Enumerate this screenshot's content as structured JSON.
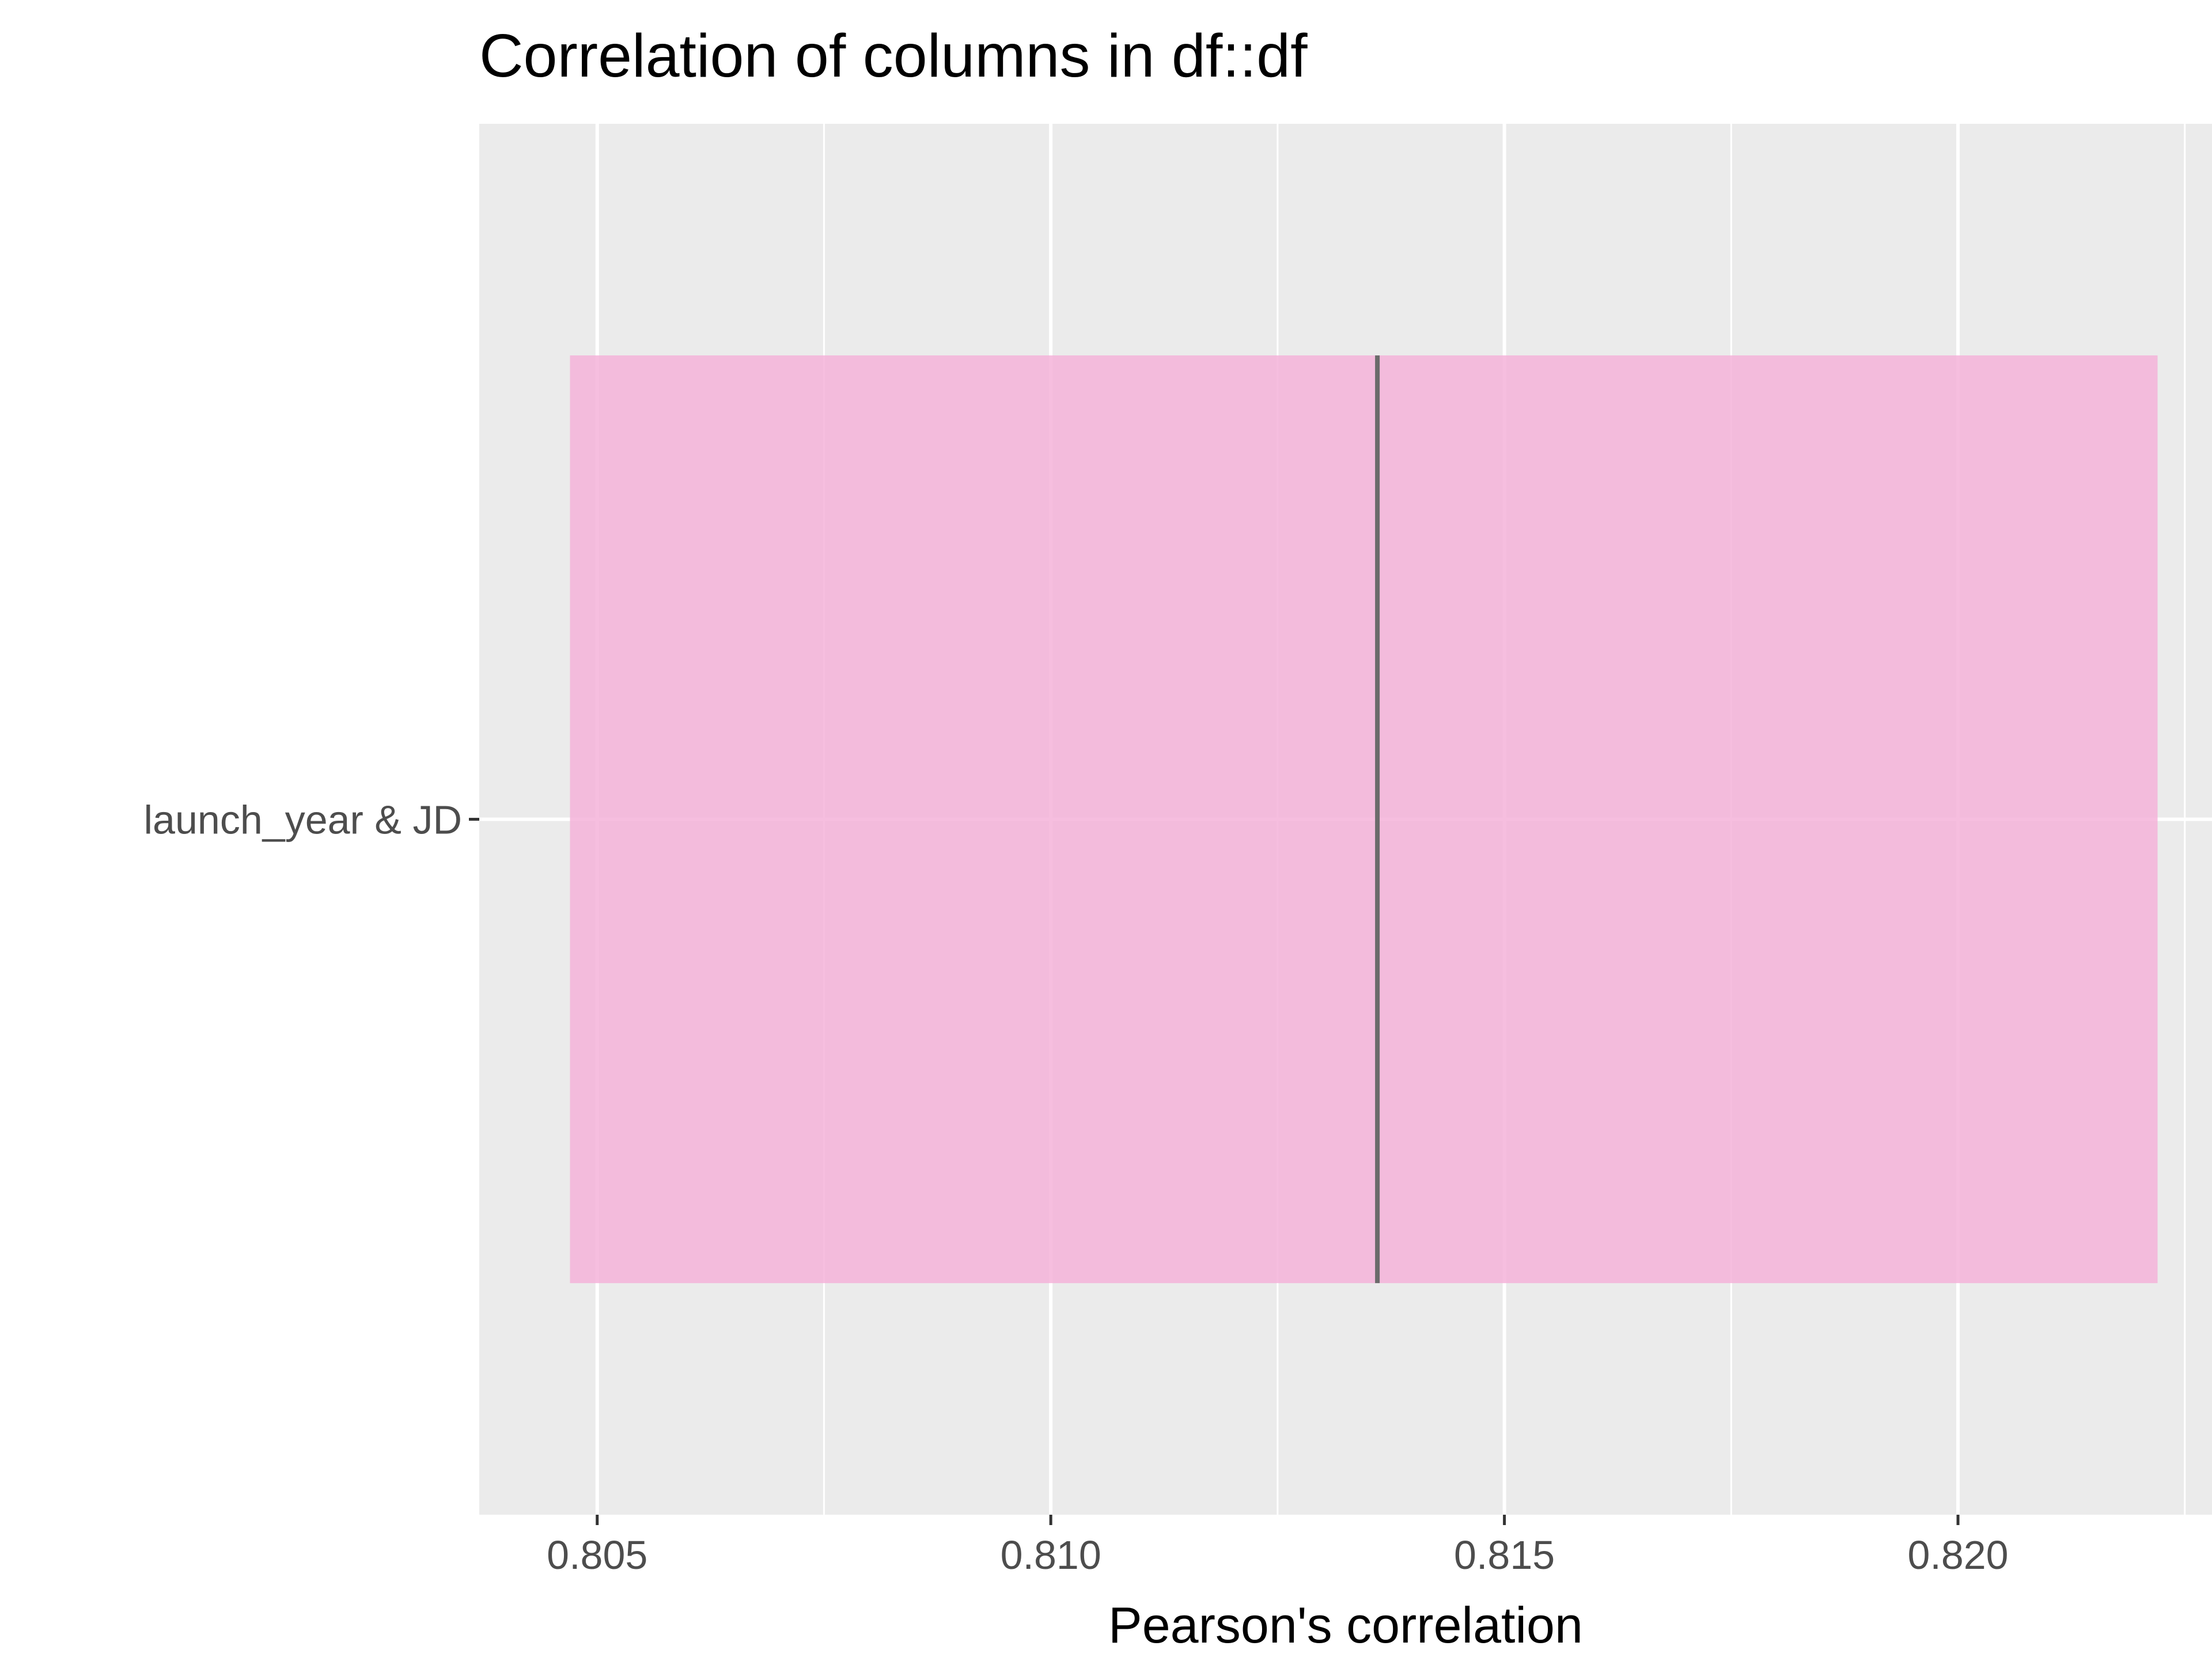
{
  "chart_data": {
    "type": "bar",
    "orientation": "horizontal",
    "title": "Correlation of columns in df::df",
    "xlabel": "Pearson's correlation",
    "ylabel": "",
    "categories": [
      "launch_year & JD"
    ],
    "series": [
      {
        "estimate": [
          0.8136
        ],
        "ci_low": [
          0.8047
        ],
        "ci_high": [
          0.8222
        ]
      }
    ],
    "xlim": [
      0.8037,
      0.8228
    ],
    "x_ticks": [
      0.805,
      0.81,
      0.815,
      0.82
    ],
    "x_tick_labels": [
      "0.805",
      "0.810",
      "0.815",
      "0.820"
    ],
    "grid": true,
    "legend": "none",
    "colors": {
      "panel": "#ebebeb",
      "grid": "#ffffff",
      "interval_fill": "#f4b3d9",
      "estimate_line": "#6b6b6b",
      "tick_text": "#4d4d4d",
      "tick_mark": "#333333"
    }
  }
}
